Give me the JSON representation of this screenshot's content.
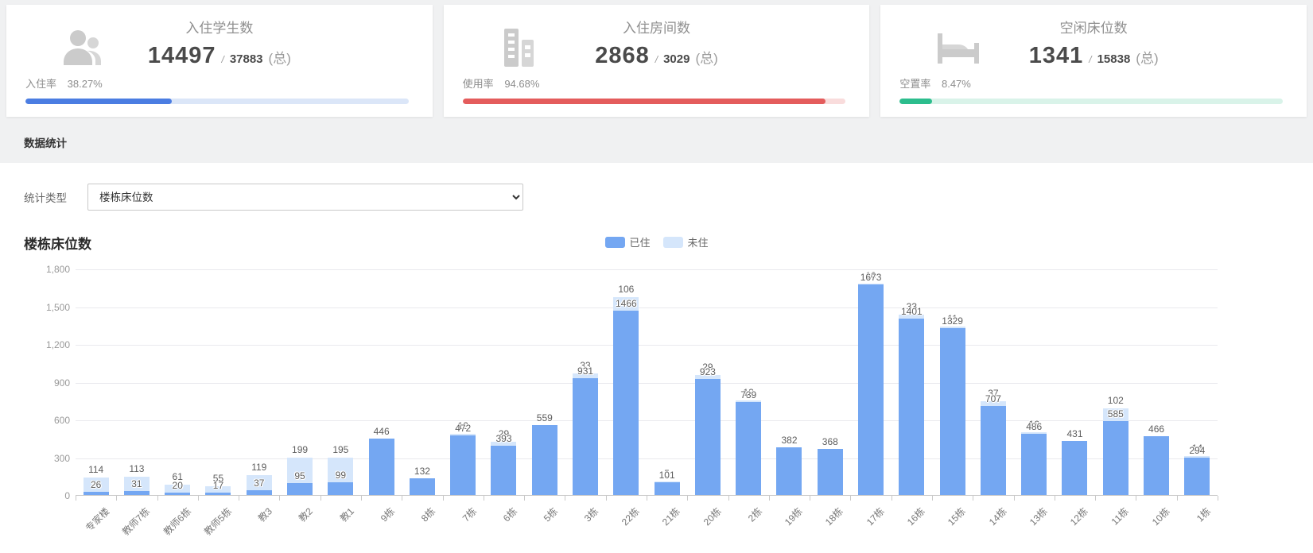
{
  "cards": [
    {
      "icon": "users-icon",
      "title": "入住学生数",
      "value": "14497",
      "slash": "/",
      "total": "37883",
      "total_suffix": "(总)",
      "rate_label": "入住率",
      "rate_value": "38.27%",
      "percent": 38.27,
      "fill_color": "#4b7de2",
      "track_color": "#dbe6f8"
    },
    {
      "icon": "building-icon",
      "title": "入住房间数",
      "value": "2868",
      "slash": "/",
      "total": "3029",
      "total_suffix": "(总)",
      "rate_label": "使用率",
      "rate_value": "94.68%",
      "percent": 94.68,
      "fill_color": "#e45c5c",
      "track_color": "#f9dcdc"
    },
    {
      "icon": "bed-icon",
      "title": "空闲床位数",
      "value": "1341",
      "slash": "/",
      "total": "15838",
      "total_suffix": "(总)",
      "rate_label": "空置率",
      "rate_value": "8.47%",
      "percent": 8.47,
      "fill_color": "#2cbd8d",
      "track_color": "#d9f3e9"
    }
  ],
  "section_title": "数据统计",
  "filter": {
    "label": "统计类型",
    "selected": "楼栋床位数"
  },
  "chart_data": {
    "type": "bar",
    "stacked": true,
    "title": "楼栋床位数",
    "legend_position": "top-center",
    "grid": true,
    "ylim": [
      0,
      1800
    ],
    "ytick_step": 300,
    "categories": [
      "专家楼",
      "教师7栋",
      "教师6栋",
      "教师5栋",
      "教3",
      "教2",
      "教1",
      "9栋",
      "8栋",
      "7栋",
      "6栋",
      "5栋",
      "3栋",
      "22栋",
      "21栋",
      "20栋",
      "2栋",
      "19栋",
      "18栋",
      "17栋",
      "16栋",
      "15栋",
      "14栋",
      "13栋",
      "12栋",
      "11栋",
      "10栋",
      "1栋"
    ],
    "series": [
      {
        "name": "已住",
        "color": "#74a7f2",
        "values": [
          26,
          31,
          20,
          17,
          37,
          95,
          99,
          446,
          132,
          472,
          393,
          559,
          931,
          1466,
          101,
          923,
          739,
          382,
          368,
          1673,
          1401,
          1329,
          707,
          486,
          431,
          585,
          466,
          294
        ]
      },
      {
        "name": "未住",
        "color": "#d5e6fb",
        "values": [
          114,
          113,
          61,
          55,
          119,
          199,
          195,
          0,
          0,
          12,
          29,
          0,
          33,
          106,
          5,
          29,
          13,
          0,
          0,
          10,
          33,
          11,
          37,
          16,
          0,
          102,
          0,
          14
        ]
      }
    ]
  }
}
